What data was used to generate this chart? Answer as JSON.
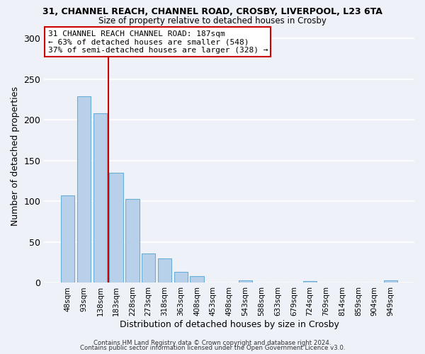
{
  "title": "31, CHANNEL REACH, CHANNEL ROAD, CROSBY, LIVERPOOL, L23 6TA",
  "subtitle": "Size of property relative to detached houses in Crosby",
  "xlabel": "Distribution of detached houses by size in Crosby",
  "ylabel": "Number of detached properties",
  "bar_color": "#b8d0ea",
  "bar_edgecolor": "#6aaed6",
  "categories": [
    "48sqm",
    "93sqm",
    "138sqm",
    "183sqm",
    "228sqm",
    "273sqm",
    "318sqm",
    "363sqm",
    "408sqm",
    "453sqm",
    "498sqm",
    "543sqm",
    "588sqm",
    "633sqm",
    "679sqm",
    "724sqm",
    "769sqm",
    "814sqm",
    "859sqm",
    "904sqm",
    "949sqm"
  ],
  "values": [
    107,
    229,
    208,
    135,
    103,
    36,
    30,
    13,
    8,
    0,
    0,
    3,
    0,
    0,
    0,
    2,
    0,
    0,
    0,
    0,
    3
  ],
  "vline_x": 2.5,
  "vline_color": "#cc0000",
  "annotation_text": "31 CHANNEL REACH CHANNEL ROAD: 187sqm\n← 63% of detached houses are smaller (548)\n37% of semi-detached houses are larger (328) →",
  "annotation_box_color": "#ffffff",
  "annotation_box_edgecolor": "#cc0000",
  "ylim": [
    0,
    310
  ],
  "yticks": [
    0,
    50,
    100,
    150,
    200,
    250,
    300
  ],
  "footer1": "Contains HM Land Registry data © Crown copyright and database right 2024.",
  "footer2": "Contains public sector information licensed under the Open Government Licence v3.0.",
  "background_color": "#eef2f8"
}
